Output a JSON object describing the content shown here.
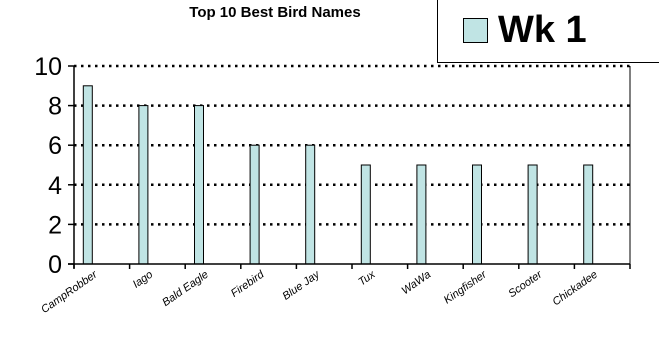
{
  "chart_data": {
    "type": "bar",
    "title": "Top 10 Best Bird Names",
    "categories": [
      "CampRobber",
      "Iago",
      "Bald Eagle",
      "Firebird",
      "Blue Jay",
      "Tux",
      "WaWa",
      "Kingfisher",
      "Scooter",
      "Chickadee"
    ],
    "series": [
      {
        "name": "Wk 1",
        "values": [
          9,
          8,
          8,
          6,
          6,
          5,
          5,
          5,
          5,
          5
        ],
        "color": "#c0e4e4"
      }
    ],
    "y_ticks": [
      "0",
      "2",
      "4",
      "6",
      "8",
      "10"
    ],
    "ylim": [
      0,
      10
    ],
    "grid": true,
    "grid_style": "dotted",
    "legend_position": "top-right"
  }
}
